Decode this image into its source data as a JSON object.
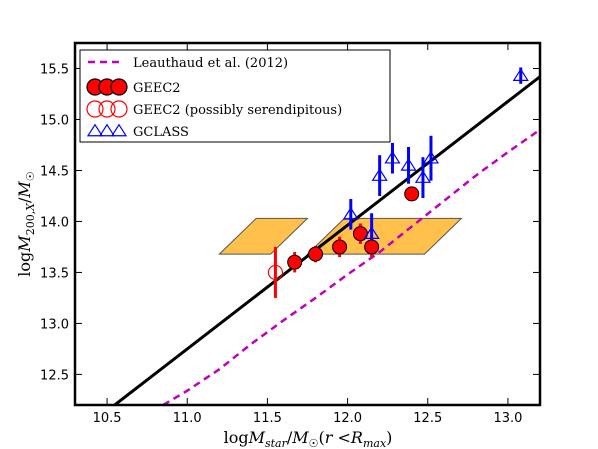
{
  "chart_data": {
    "type": "scatter",
    "title": "",
    "xlabel": "logM_star/M_sun(r<R_max)",
    "ylabel": "logM_200,X/M_sun",
    "xlim": [
      10.3,
      13.2
    ],
    "ylim": [
      12.2,
      15.75
    ],
    "xticks": [
      10.5,
      11.0,
      11.5,
      12.0,
      12.5,
      13.0
    ],
    "xtick_labels": [
      "10.5",
      "11.0",
      "11.5",
      "12.0",
      "12.5",
      "13.0"
    ],
    "yticks": [
      12.5,
      13.0,
      13.5,
      14.0,
      14.5,
      15.0,
      15.5
    ],
    "ytick_labels": [
      "12.5",
      "13.0",
      "13.5",
      "14.0",
      "14.5",
      "15.0",
      "15.5"
    ],
    "grid": false,
    "legend_position": "top-left",
    "legend": [
      {
        "label": "Leauthaud et al. (2012)",
        "style": "dashed-line",
        "color": "#bf00bf"
      },
      {
        "label": "GEEC2",
        "style": "filled-circle",
        "color": "#ff0000"
      },
      {
        "label": "GEEC2 (possibly serendipitous)",
        "style": "open-circle",
        "color": "#ff0000"
      },
      {
        "label": "GCLASS",
        "style": "open-triangle",
        "color": "#0000ff"
      }
    ],
    "fit_line": {
      "color": "#000000",
      "points": [
        [
          10.3,
          11.9
        ],
        [
          13.2,
          15.42
        ]
      ]
    },
    "leauthaud_curve": {
      "color": "#bf00bf",
      "points": [
        [
          10.85,
          12.2
        ],
        [
          11.0,
          12.34
        ],
        [
          11.2,
          12.55
        ],
        [
          11.4,
          12.8
        ],
        [
          11.6,
          13.03
        ],
        [
          11.8,
          13.25
        ],
        [
          12.0,
          13.48
        ],
        [
          12.2,
          13.7
        ],
        [
          12.4,
          13.95
        ],
        [
          12.6,
          14.2
        ],
        [
          12.8,
          14.45
        ],
        [
          13.0,
          14.68
        ],
        [
          13.2,
          14.9
        ]
      ]
    },
    "shaded_regions": [
      {
        "color": "#ffa500",
        "points": [
          [
            11.2,
            13.68
          ],
          [
            11.43,
            14.03
          ],
          [
            11.75,
            14.03
          ],
          [
            11.52,
            13.68
          ]
        ]
      },
      {
        "color": "#ffa500",
        "points": [
          [
            11.75,
            13.68
          ],
          [
            11.98,
            14.03
          ],
          [
            12.71,
            14.03
          ],
          [
            12.48,
            13.68
          ]
        ]
      }
    ],
    "series": [
      {
        "name": "GEEC2",
        "marker": "filled-circle",
        "color": "#ff0000",
        "points": [
          {
            "x": 11.67,
            "y": 13.6,
            "yerr": 0.1
          },
          {
            "x": 11.8,
            "y": 13.68,
            "yerr": 0.08
          },
          {
            "x": 11.95,
            "y": 13.75,
            "yerr": 0.1
          },
          {
            "x": 12.08,
            "y": 13.88,
            "yerr": 0.1
          },
          {
            "x": 12.15,
            "y": 13.75,
            "yerr": 0.1
          },
          {
            "x": 12.4,
            "y": 14.27,
            "yerr": 0.07
          }
        ]
      },
      {
        "name": "GEEC2 (possibly serendipitous)",
        "marker": "open-circle",
        "color": "#ff0000",
        "points": [
          {
            "x": 11.55,
            "y": 13.5,
            "yerr": 0.25
          }
        ]
      },
      {
        "name": "GCLASS",
        "marker": "open-triangle",
        "color": "#0000ff",
        "points": [
          {
            "x": 12.02,
            "y": 14.07,
            "yerr": 0.15
          },
          {
            "x": 12.15,
            "y": 13.88,
            "yerr": 0.2
          },
          {
            "x": 12.2,
            "y": 14.45,
            "yerr": 0.2
          },
          {
            "x": 12.28,
            "y": 14.62,
            "yerr": 0.15
          },
          {
            "x": 12.38,
            "y": 14.55,
            "yerr": 0.18
          },
          {
            "x": 12.47,
            "y": 14.43,
            "yerr": 0.2
          },
          {
            "x": 12.52,
            "y": 14.62,
            "yerr": 0.22
          },
          {
            "x": 13.08,
            "y": 15.43,
            "yerr": 0.08
          }
        ]
      }
    ]
  }
}
